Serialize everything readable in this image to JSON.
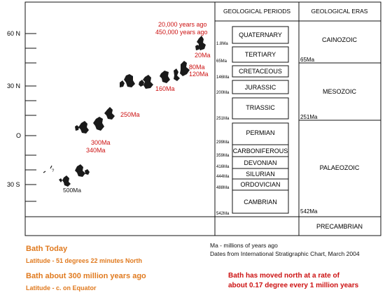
{
  "lat_axis": {
    "labels": [
      "60 N",
      "30 N",
      "O",
      "30 S"
    ]
  },
  "table": {
    "header_periods": "GEOLOGICAL PERIODS",
    "header_eras": "GEOLOGICAL ERAS",
    "periods": [
      "QUATERNARY",
      "TERTIARY",
      "CRETACEOUS",
      "JURASSIC",
      "TRIASSIC",
      "PERMIAN",
      "CARBONIFEROUS",
      "DEVONIAN",
      "SILURIAN",
      "ORDOVICIAN",
      "CAMBRIAN"
    ],
    "period_ages": [
      "1.8Ma",
      "65Ma",
      "146Ma",
      "200Ma",
      "251Ma",
      "299Ma",
      "359Ma",
      "416Ma",
      "444Ma",
      "488Ma",
      "542Ma"
    ],
    "eras": [
      "CAINOZOIC",
      "MESOZOIC",
      "PALAEOZOIC",
      "PRECAMBRIAN"
    ],
    "era_ages": [
      "65Ma",
      "251Ma",
      "542Ma"
    ]
  },
  "positions": {
    "labels_red": [
      "20,000 years ago",
      "450,000 years ago",
      "20Ma",
      "80Ma",
      "120Ma",
      "160Ma",
      "250Ma",
      "300Ma",
      "340Ma"
    ],
    "labels_black": [
      "500Ma",
      "?"
    ]
  },
  "captions": {
    "bath_today": "Bath Today",
    "latitude_today": "Latitude - 51 degrees 22 minutes North",
    "bath_300": "Bath about 300 million years ago",
    "latitude_300": "Latitude - c. on Equator",
    "ma_note": "Ma - millions of years ago",
    "source_note": "Dates from International Stratigraphic Chart, March 2004",
    "rate_line1": "Bath has moved north at a rate of",
    "rate_line2": "about 0.17 degree every 1 million years"
  },
  "colors": {
    "red_label": "#cc1111",
    "orange_caption": "#e07a1f",
    "landmass": "#1a1a1a"
  }
}
